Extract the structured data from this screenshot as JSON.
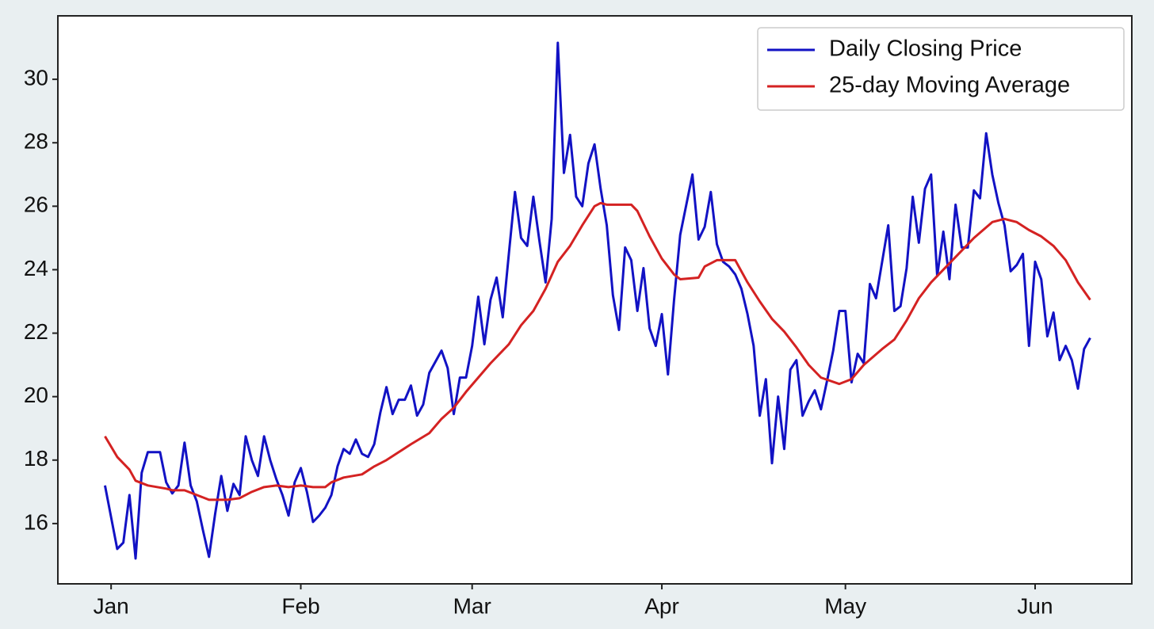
{
  "chart_data": {
    "type": "line",
    "x": [
      -1,
      0,
      1,
      2,
      3,
      4,
      5,
      6,
      8,
      9,
      10,
      11,
      12,
      13,
      14,
      15,
      16,
      17,
      18,
      19,
      20,
      21,
      22,
      23,
      24,
      25,
      26,
      27,
      28,
      29,
      30,
      31,
      32,
      33,
      34,
      35,
      36,
      37,
      38,
      39,
      40,
      41,
      42,
      43,
      44,
      45,
      46,
      47,
      48,
      49,
      50,
      51,
      52,
      54,
      55,
      56,
      57,
      58,
      59,
      60,
      61,
      62,
      63,
      64,
      65,
      66,
      67,
      68,
      69,
      70,
      71,
      72,
      73,
      74,
      75,
      76,
      77,
      78,
      79,
      80,
      81,
      82,
      83,
      84,
      85,
      86,
      87,
      88,
      89,
      90,
      91,
      92,
      93,
      95,
      96,
      97,
      98,
      99,
      100,
      101,
      102,
      103,
      104,
      105,
      106,
      107,
      108,
      109,
      110,
      111,
      112,
      113,
      114,
      115,
      116,
      117,
      118,
      119,
      120,
      121,
      122,
      123,
      124,
      125,
      127,
      128,
      129,
      130,
      131,
      132,
      133,
      134,
      135,
      136,
      137,
      138,
      139,
      140,
      141,
      142,
      143,
      144,
      145,
      146,
      147,
      148,
      149,
      150,
      151,
      152,
      153,
      154,
      155,
      156,
      157,
      158,
      159,
      160
    ],
    "series": [
      {
        "name": "Daily Closing Price",
        "color": "#1212c4",
        "values": [
          17.2,
          16.2,
          15.2,
          15.4,
          16.9,
          14.9,
          17.6,
          18.25,
          18.25,
          17.3,
          16.95,
          17.2,
          18.55,
          17.2,
          16.7,
          15.8,
          14.95,
          16.3,
          17.5,
          16.4,
          17.25,
          16.9,
          18.75,
          18.0,
          17.5,
          18.75,
          18.0,
          17.4,
          16.9,
          16.25,
          17.3,
          17.75,
          17.0,
          16.05,
          16.25,
          16.5,
          16.9,
          17.8,
          18.35,
          18.2,
          18.65,
          18.2,
          18.1,
          18.5,
          19.5,
          20.3,
          19.45,
          19.9,
          19.9,
          20.35,
          19.4,
          19.75,
          20.75,
          21.45,
          20.9,
          19.45,
          20.6,
          20.6,
          21.6,
          23.15,
          21.65,
          23.05,
          23.75,
          22.5,
          24.5,
          26.45,
          25.0,
          24.75,
          26.3,
          24.9,
          23.6,
          25.6,
          31.15,
          27.05,
          28.25,
          26.3,
          26.0,
          27.35,
          27.95,
          26.55,
          25.4,
          23.2,
          22.1,
          24.7,
          24.3,
          22.7,
          24.05,
          22.15,
          21.6,
          22.6,
          20.7,
          23.05,
          25.1,
          27.0,
          24.95,
          25.35,
          26.45,
          24.8,
          24.25,
          24.1,
          23.85,
          23.4,
          22.6,
          21.6,
          19.4,
          20.55,
          17.9,
          20.0,
          18.35,
          20.85,
          21.15,
          19.4,
          19.85,
          20.2,
          19.6,
          20.5,
          21.45,
          22.7,
          22.7,
          20.45,
          21.35,
          21.05,
          23.55,
          23.1,
          25.4,
          22.7,
          22.85,
          24.05,
          26.3,
          24.85,
          26.55,
          27.0,
          23.8,
          25.2,
          23.7,
          26.05,
          24.7,
          24.7,
          26.5,
          26.25,
          28.3,
          27.0,
          26.1,
          25.4,
          23.95,
          24.15,
          24.5,
          21.6,
          24.25,
          23.7,
          21.9,
          22.65,
          21.15,
          21.6,
          21.15,
          20.25,
          21.5,
          21.85
        ]
      },
      {
        "name": "25-day Moving Average",
        "color": "#d42222",
        "x": [
          -1,
          1,
          3,
          4,
          6,
          9,
          10,
          12,
          14,
          16,
          19,
          21,
          23,
          25,
          27,
          29,
          31,
          33,
          35,
          36,
          38,
          41,
          43,
          45,
          47,
          49,
          52,
          54,
          56,
          58,
          60,
          62,
          65,
          67,
          69,
          71,
          73,
          75,
          77,
          79,
          80,
          81,
          84,
          85,
          86,
          88,
          90,
          92,
          93,
          96,
          97,
          99,
          102,
          104,
          106,
          108,
          110,
          112,
          114,
          116,
          119,
          121,
          123,
          126,
          128,
          130,
          132,
          134,
          137,
          139,
          141,
          144,
          146,
          148,
          150,
          152,
          154,
          156,
          158,
          160
        ],
        "values": [
          18.75,
          18.1,
          17.7,
          17.35,
          17.2,
          17.1,
          17.05,
          17.05,
          16.9,
          16.75,
          16.75,
          16.8,
          17.0,
          17.15,
          17.2,
          17.15,
          17.2,
          17.15,
          17.15,
          17.3,
          17.45,
          17.55,
          17.8,
          18.0,
          18.25,
          18.5,
          18.85,
          19.3,
          19.65,
          20.15,
          20.6,
          21.05,
          21.65,
          22.25,
          22.7,
          23.4,
          24.25,
          24.75,
          25.4,
          26.0,
          26.1,
          26.05,
          26.05,
          26.05,
          25.85,
          25.05,
          24.35,
          23.85,
          23.7,
          23.75,
          24.1,
          24.3,
          24.3,
          23.6,
          23.0,
          22.45,
          22.05,
          21.55,
          21.0,
          20.6,
          20.4,
          20.55,
          21.0,
          21.5,
          21.8,
          22.4,
          23.1,
          23.6,
          24.2,
          24.6,
          25.0,
          25.5,
          25.6,
          25.5,
          25.25,
          25.05,
          24.75,
          24.3,
          23.6,
          23.05
        ]
      }
    ],
    "xlim": [
      -8.7,
      166.8
    ],
    "xticks": [
      {
        "value": 0,
        "label": "Jan"
      },
      {
        "value": 31,
        "label": "Feb"
      },
      {
        "value": 59,
        "label": "Mar"
      },
      {
        "value": 90,
        "label": "Apr"
      },
      {
        "value": 120,
        "label": "May"
      },
      {
        "value": 151,
        "label": "Jun"
      }
    ],
    "ylim": [
      14.1,
      32.0
    ],
    "yticks": [
      16,
      18,
      20,
      22,
      24,
      26,
      28,
      30
    ],
    "grid": false,
    "legend": "upper right"
  }
}
